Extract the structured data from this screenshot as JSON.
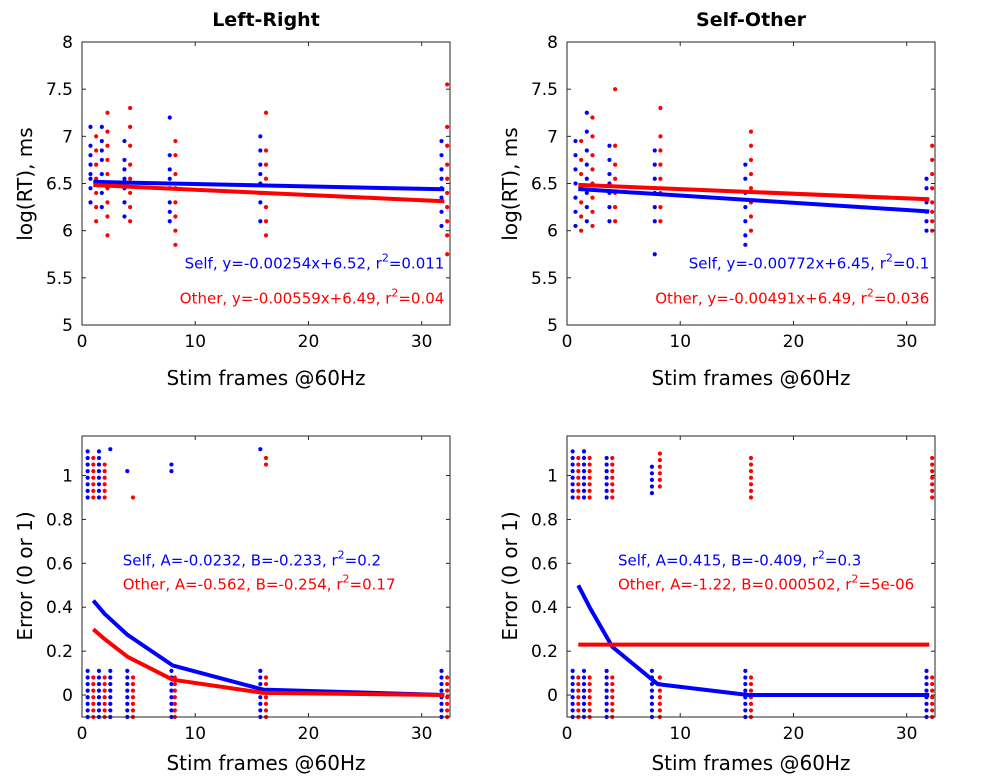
{
  "chart_data": [
    {
      "type": "scatter",
      "title": "Left-Right",
      "xlabel": "Stim frames @60Hz",
      "ylabel": "log(RT), ms",
      "xlim": [
        0,
        32.5
      ],
      "ylim": [
        5,
        8
      ],
      "xticks": [
        0,
        10,
        20,
        30
      ],
      "yticks": [
        5,
        5.5,
        6,
        6.5,
        7,
        7.5,
        8
      ],
      "ytick_labels": [
        "5",
        "5.5",
        "6",
        "6.5",
        "7",
        "7.5",
        "8"
      ],
      "annotations": [
        {
          "text": "Self, y=-0.00254x+6.52, r",
          "sup": "2",
          "after": "=0.011",
          "color": "#0000ff",
          "x": 32,
          "y": 5.6
        },
        {
          "text": "Other, y=-0.00559x+6.49, r",
          "sup": "2",
          "after": "=0.04",
          "color": "#ff0000",
          "x": 32,
          "y": 5.23
        }
      ],
      "series": [
        {
          "name": "Self",
          "color": "#0000ff",
          "fit": {
            "x": [
              1,
              32
            ],
            "y": [
              6.517,
              6.439
            ]
          },
          "points": {
            "0.75": [
              6.3,
              6.45,
              6.55,
              6.6,
              6.7,
              6.8,
              6.9,
              7.1
            ],
            "1.75": [
              6.25,
              6.4,
              6.5,
              6.6,
              6.75,
              6.85,
              6.95,
              7.1
            ],
            "3.75": [
              6.15,
              6.3,
              6.45,
              6.55,
              6.65,
              6.75,
              6.95
            ],
            "7.75": [
              6.1,
              6.2,
              6.3,
              6.45,
              6.55,
              6.65,
              6.8,
              7.2
            ],
            "15.75": [
              6.1,
              6.3,
              6.4,
              6.5,
              6.6,
              6.7,
              6.85,
              7.0
            ],
            "31.75": [
              6.05,
              6.2,
              6.35,
              6.45,
              6.55,
              6.65,
              6.8,
              6.95
            ]
          }
        },
        {
          "name": "Other",
          "color": "#ff0000",
          "fit": {
            "x": [
              1,
              32
            ],
            "y": [
              6.484,
              6.311
            ]
          },
          "points": {
            "1.25": [
              6.1,
              6.25,
              6.4,
              6.55,
              6.7,
              6.85,
              7.0
            ],
            "2.25": [
              5.95,
              6.15,
              6.3,
              6.45,
              6.6,
              6.75,
              6.9,
              7.05,
              7.25
            ],
            "4.25": [
              6.1,
              6.25,
              6.4,
              6.55,
              6.7,
              6.9,
              7.1,
              7.3
            ],
            "8.25": [
              5.85,
              6.0,
              6.15,
              6.3,
              6.45,
              6.6,
              6.8,
              6.95
            ],
            "16.25": [
              5.95,
              6.1,
              6.25,
              6.4,
              6.55,
              6.7,
              6.85,
              7.25
            ],
            "32.25": [
              5.75,
              5.95,
              6.1,
              6.25,
              6.4,
              6.55,
              6.7,
              6.9,
              7.1,
              7.55
            ]
          }
        }
      ]
    },
    {
      "type": "scatter",
      "title": "Self-Other",
      "xlabel": "Stim frames @60Hz",
      "ylabel": "log(RT), ms",
      "xlim": [
        0,
        32.5
      ],
      "ylim": [
        5,
        8
      ],
      "xticks": [
        0,
        10,
        20,
        30
      ],
      "yticks": [
        5,
        5.5,
        6,
        6.5,
        7,
        7.5,
        8
      ],
      "ytick_labels": [
        "5",
        "5.5",
        "6",
        "6.5",
        "7",
        "7.5",
        "8"
      ],
      "annotations": [
        {
          "text": "Self, y=-0.00772x+6.45, r",
          "sup": "2",
          "after": "=0.1",
          "color": "#0000ff",
          "x": 32,
          "y": 5.6
        },
        {
          "text": "Other, y=-0.00491x+6.49, r",
          "sup": "2",
          "after": "=0.036",
          "color": "#ff0000",
          "x": 32,
          "y": 5.23
        }
      ],
      "series": [
        {
          "name": "Self",
          "color": "#0000ff",
          "fit": {
            "x": [
              1,
              32
            ],
            "y": [
              6.442,
              6.203
            ]
          },
          "points": {
            "0.75": [
              6.05,
              6.2,
              6.35,
              6.5,
              6.65,
              6.8,
              6.95
            ],
            "1.75": [
              6.1,
              6.25,
              6.4,
              6.55,
              6.7,
              6.85,
              7.05,
              7.25
            ],
            "3.75": [
              6.1,
              6.25,
              6.4,
              6.5,
              6.6,
              6.75,
              6.9
            ],
            "7.75": [
              5.75,
              6.1,
              6.25,
              6.4,
              6.55,
              6.7,
              6.85
            ],
            "15.75": [
              5.85,
              5.95,
              6.1,
              6.25,
              6.4,
              6.55,
              6.7
            ],
            "31.75": [
              6.0,
              6.1,
              6.2,
              6.3,
              6.45,
              6.55
            ]
          }
        },
        {
          "name": "Other",
          "color": "#ff0000",
          "fit": {
            "x": [
              1,
              32
            ],
            "y": [
              6.485,
              6.333
            ]
          },
          "points": {
            "1.25": [
              6.0,
              6.15,
              6.3,
              6.45,
              6.6,
              6.75,
              6.95
            ],
            "2.25": [
              6.05,
              6.2,
              6.35,
              6.5,
              6.65,
              6.8,
              7.0,
              7.2
            ],
            "4.25": [
              6.1,
              6.25,
              6.4,
              6.55,
              6.7,
              6.9,
              7.5
            ],
            "8.25": [
              6.1,
              6.25,
              6.4,
              6.55,
              6.7,
              6.85,
              7.0,
              7.3
            ],
            "16.25": [
              6.0,
              6.15,
              6.3,
              6.45,
              6.6,
              6.75,
              6.9,
              7.05
            ],
            "32.25": [
              6.0,
              6.1,
              6.2,
              6.3,
              6.45,
              6.6,
              6.75,
              6.9
            ]
          }
        }
      ]
    },
    {
      "type": "scatter",
      "title": "",
      "xlabel": "Stim frames @60Hz",
      "ylabel": "Error (0 or 1)",
      "xlim": [
        0,
        32.5
      ],
      "ylim": [
        -0.1,
        1.18
      ],
      "xticks": [
        0,
        10,
        20,
        30
      ],
      "yticks": [
        0,
        0.2,
        0.4,
        0.6,
        0.8,
        1
      ],
      "ytick_labels": [
        "0",
        "0.2",
        "0.4",
        "0.6",
        "0.8",
        "1"
      ],
      "annotations": [
        {
          "text": "Self, A=-0.0232, B=-0.233, r",
          "sup": "2",
          "after": "=0.2",
          "color": "#0000ff",
          "x": 3.6,
          "y": 0.59
        },
        {
          "text": "Other, A=-0.562, B=-0.254, r",
          "sup": "2",
          "after": "=0.17",
          "color": "#ff0000",
          "x": 3.6,
          "y": 0.48
        }
      ],
      "series": [
        {
          "name": "Self",
          "color": "#0000ff",
          "fit": {
            "x": [
              1,
              2,
              4,
              8,
              16,
              32
            ],
            "y": [
              0.43,
              0.37,
              0.275,
              0.135,
              0.025,
              0.0
            ]
          },
          "columns": [
            {
              "x": 0.5,
              "low": [
                -0.1,
                0.12
              ],
              "high": [
                0.9,
                1.12
              ]
            },
            {
              "x": 1.5,
              "low": [
                -0.1,
                0.12
              ],
              "high": [
                0.9,
                1.12
              ]
            },
            {
              "x": 2.5,
              "low": [
                -0.1,
                0.12
              ],
              "high": [
                1.12,
                1.12
              ]
            },
            {
              "x": 4.0,
              "low": [
                -0.1,
                0.12
              ],
              "high": [
                1.02,
                1.02
              ]
            },
            {
              "x": 7.9,
              "low": [
                -0.1,
                0.12
              ],
              "high": [
                1.02,
                1.07
              ]
            },
            {
              "x": 15.75,
              "low": [
                -0.1,
                0.12
              ],
              "high": [
                1.12,
                1.12
              ]
            },
            {
              "x": 31.75,
              "low": [
                -0.1,
                0.12
              ]
            }
          ]
        },
        {
          "name": "Other",
          "color": "#ff0000",
          "fit": {
            "x": [
              1,
              2,
              4,
              8,
              16,
              32
            ],
            "y": [
              0.3,
              0.255,
              0.175,
              0.07,
              0.01,
              0.0
            ]
          },
          "columns": [
            {
              "x": 1.0,
              "low": [
                -0.1,
                0.1
              ],
              "high": [
                0.9,
                1.1
              ]
            },
            {
              "x": 2.0,
              "low": [
                -0.1,
                0.1
              ],
              "high": [
                0.9,
                1.05
              ]
            },
            {
              "x": 4.5,
              "low": [
                -0.1,
                0.1
              ],
              "high": [
                0.9,
                0.9
              ]
            },
            {
              "x": 8.2,
              "low": [
                -0.1,
                0.1
              ]
            },
            {
              "x": 16.25,
              "low": [
                -0.1,
                0.1
              ],
              "high": [
                1.05,
                1.1
              ]
            },
            {
              "x": 32.25,
              "low": [
                -0.1,
                0.1
              ]
            }
          ]
        }
      ]
    },
    {
      "type": "scatter",
      "title": "",
      "xlabel": "Stim frames @60Hz",
      "ylabel": "Error (0 or 1)",
      "xlim": [
        0,
        32.5
      ],
      "ylim": [
        -0.1,
        1.18
      ],
      "xticks": [
        0,
        10,
        20,
        30
      ],
      "yticks": [
        0,
        0.2,
        0.4,
        0.6,
        0.8,
        1
      ],
      "ytick_labels": [
        "0",
        "0.2",
        "0.4",
        "0.6",
        "0.8",
        "1"
      ],
      "annotations": [
        {
          "text": "Self, A=0.415, B=-0.409, r",
          "sup": "2",
          "after": "=0.3",
          "color": "#0000ff",
          "x": 4.5,
          "y": 0.59
        },
        {
          "text": "Other, A=-1.22, B=0.000502, r",
          "sup": "2",
          "after": "=5e-06",
          "color": "#ff0000",
          "x": 4.5,
          "y": 0.48
        }
      ],
      "series": [
        {
          "name": "Self",
          "color": "#0000ff",
          "fit": {
            "x": [
              1,
              2,
              4,
              8,
              16,
              32
            ],
            "y": [
              0.5,
              0.4,
              0.22,
              0.05,
              0.0,
              0.0
            ]
          },
          "columns": [
            {
              "x": 0.5,
              "low": [
                -0.1,
                0.12
              ],
              "high": [
                0.9,
                1.12
              ]
            },
            {
              "x": 1.5,
              "low": [
                -0.1,
                0.12
              ],
              "high": [
                0.9,
                1.12
              ]
            },
            {
              "x": 3.5,
              "low": [
                -0.1,
                0.12
              ],
              "high": [
                0.9,
                1.1
              ]
            },
            {
              "x": 7.5,
              "low": [
                -0.1,
                0.12
              ],
              "high": [
                0.92,
                1.05
              ]
            },
            {
              "x": 15.75,
              "low": [
                -0.1,
                0.12
              ]
            },
            {
              "x": 31.75,
              "low": [
                -0.1,
                0.12
              ]
            }
          ]
        },
        {
          "name": "Other",
          "color": "#ff0000",
          "fit": {
            "x": [
              1,
              32
            ],
            "y": [
              0.23,
              0.23
            ]
          },
          "columns": [
            {
              "x": 1.0,
              "low": [
                -0.1,
                0.1
              ],
              "high": [
                0.9,
                1.1
              ]
            },
            {
              "x": 2.0,
              "low": [
                -0.1,
                0.1
              ],
              "high": [
                0.9,
                1.1
              ]
            },
            {
              "x": 4.0,
              "low": [
                -0.1,
                0.1
              ],
              "high": [
                0.9,
                1.1
              ]
            },
            {
              "x": 8.2,
              "low": [
                -0.1,
                0.1
              ],
              "high": [
                0.95,
                1.1
              ]
            },
            {
              "x": 16.25,
              "low": [
                -0.1,
                0.1
              ],
              "high": [
                0.9,
                1.1
              ]
            },
            {
              "x": 32.25,
              "low": [
                -0.1,
                0.1
              ],
              "high": [
                0.9,
                1.1
              ]
            }
          ]
        }
      ]
    }
  ]
}
